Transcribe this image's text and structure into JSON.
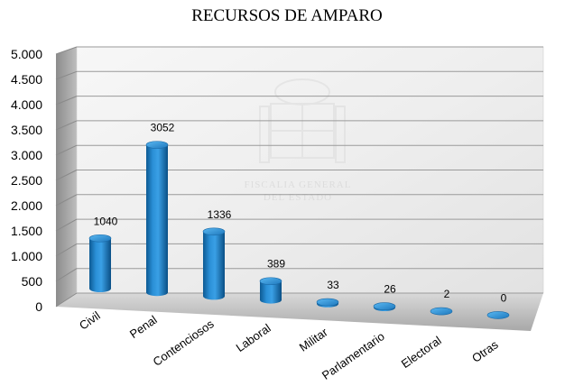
{
  "watermark": {
    "line1": "FISCALIA GENERAL",
    "line2": "DEL ESTADO"
  },
  "chart_data": {
    "type": "bar",
    "title": "RECURSOS DE AMPARO",
    "xlabel": "",
    "ylabel": "",
    "categories": [
      "Civil",
      "Penal",
      "Contenciosos",
      "Laboral",
      "Militar",
      "Parlamentario",
      "Electoral",
      "Otras"
    ],
    "values": [
      1040,
      3052,
      1336,
      389,
      33,
      26,
      2,
      0
    ],
    "value_labels": [
      "1040",
      "3052",
      "1336",
      "389",
      "33",
      "26",
      "2",
      "0"
    ],
    "ylim": [
      0,
      5000
    ],
    "yticks": [
      0,
      500,
      1000,
      1500,
      2000,
      2500,
      3000,
      3500,
      4000,
      4500,
      5000
    ],
    "ytick_labels": [
      "0",
      "500",
      "1.000",
      "1.500",
      "2.000",
      "2.500",
      "3.000",
      "3.500",
      "4.000",
      "4.500",
      "5.000"
    ],
    "grid": true,
    "legend": "none",
    "style": "3d-cylinder",
    "bar_color": "#1f7fc4"
  }
}
